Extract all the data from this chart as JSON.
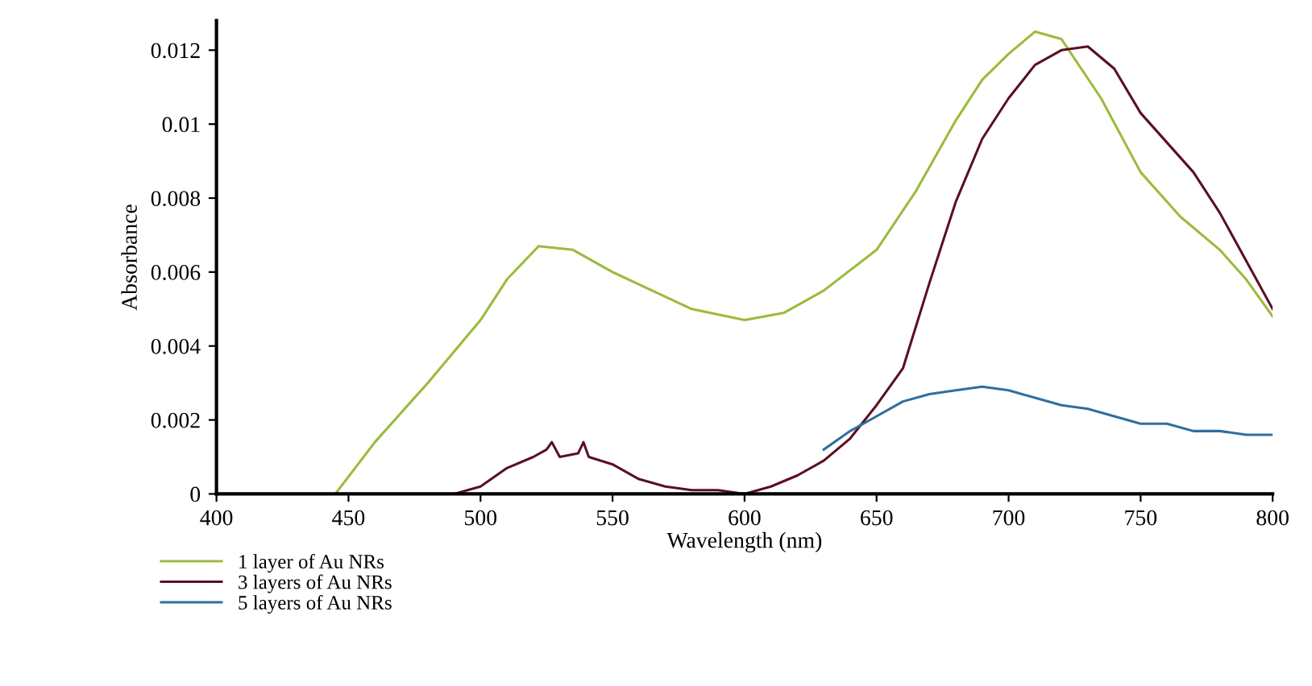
{
  "chart_data": {
    "type": "line",
    "xlabel": "Wavelength (nm)",
    "ylabel": "Absorbance",
    "xlim": [
      400,
      800
    ],
    "xticks": [
      400,
      450,
      500,
      550,
      600,
      650,
      700,
      750,
      800
    ],
    "ylim": [
      0,
      0.0128
    ],
    "yticks": [
      0,
      0.002,
      0.004,
      0.006,
      0.008,
      0.01,
      0.012
    ],
    "legend": "bottom left",
    "grid": false,
    "series": [
      {
        "name": "1 layer of Au NRs",
        "color": "#9bbb3c",
        "x": [
          400,
          445,
          460,
          480,
          500,
          510,
          522,
          535,
          550,
          565,
          580,
          600,
          615,
          630,
          650,
          665,
          680,
          690,
          700,
          710,
          720,
          735,
          750,
          765,
          780,
          790,
          800
        ],
        "values": [
          0,
          0,
          0.0014,
          0.003,
          0.0047,
          0.0058,
          0.0067,
          0.0066,
          0.006,
          0.0055,
          0.005,
          0.0047,
          0.0049,
          0.0055,
          0.0066,
          0.0082,
          0.0101,
          0.0112,
          0.0119,
          0.0125,
          0.0123,
          0.0107,
          0.0087,
          0.0075,
          0.0066,
          0.0058,
          0.0048
        ]
      },
      {
        "name": "3 layers of Au NRs",
        "color": "#5a1020",
        "x": [
          400,
          490,
          500,
          510,
          520,
          525,
          527,
          530,
          537,
          539,
          541,
          550,
          560,
          570,
          580,
          590,
          600,
          610,
          620,
          630,
          640,
          650,
          660,
          670,
          680,
          690,
          700,
          710,
          720,
          730,
          740,
          750,
          760,
          770,
          780,
          790,
          800
        ],
        "values": [
          0,
          0,
          0.0002,
          0.0007,
          0.001,
          0.0012,
          0.0014,
          0.001,
          0.0011,
          0.0014,
          0.001,
          0.0008,
          0.0004,
          0.0002,
          0.0001,
          0.0001,
          0,
          0.0002,
          0.0005,
          0.0009,
          0.0015,
          0.0024,
          0.0034,
          0.0057,
          0.0079,
          0.0096,
          0.0107,
          0.0116,
          0.012,
          0.0121,
          0.0115,
          0.0103,
          0.0095,
          0.0087,
          0.0076,
          0.0063,
          0.005
        ]
      },
      {
        "name": "5 layers of Au NRs",
        "color": "#2f6f9f",
        "x": [
          630,
          640,
          650,
          660,
          670,
          680,
          690,
          700,
          710,
          720,
          730,
          740,
          750,
          760,
          770,
          780,
          790,
          800
        ],
        "values": [
          0.0012,
          0.0017,
          0.0021,
          0.0025,
          0.0027,
          0.0028,
          0.0029,
          0.0028,
          0.0026,
          0.0024,
          0.0023,
          0.0021,
          0.0019,
          0.0019,
          0.0017,
          0.0017,
          0.0016,
          0.0016
        ]
      }
    ]
  }
}
